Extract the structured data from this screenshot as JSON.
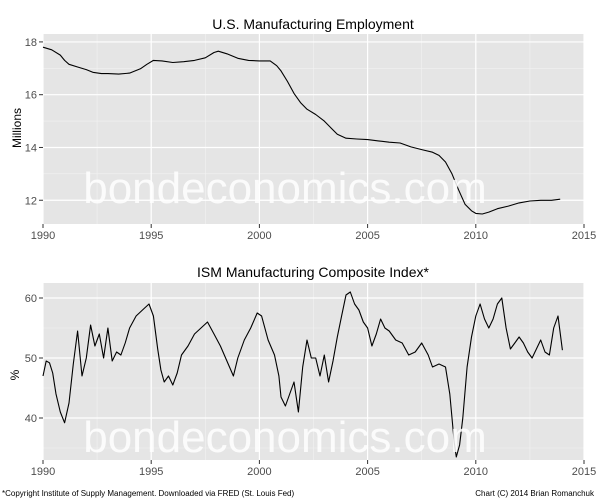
{
  "chart_data": [
    {
      "type": "line",
      "title": "U.S. Manufacturing Employment",
      "xlabel": "",
      "ylabel": "Millions",
      "xlim": [
        1990,
        2015
      ],
      "ylim": [
        11.1,
        18.3
      ],
      "x_ticks": [
        1990,
        1995,
        2000,
        2005,
        2010,
        2015
      ],
      "y_ticks": [
        12,
        14,
        16,
        18
      ],
      "grid": true,
      "series": [
        {
          "points": [
            [
              1990.0,
              17.8
            ],
            [
              1990.4,
              17.7
            ],
            [
              1990.8,
              17.5
            ],
            [
              1991.0,
              17.3
            ],
            [
              1991.2,
              17.15
            ],
            [
              1991.6,
              17.05
            ],
            [
              1992.0,
              16.95
            ],
            [
              1992.3,
              16.85
            ],
            [
              1992.7,
              16.8
            ],
            [
              1993.0,
              16.8
            ],
            [
              1993.5,
              16.78
            ],
            [
              1994.0,
              16.82
            ],
            [
              1994.5,
              16.98
            ],
            [
              1994.8,
              17.15
            ],
            [
              1995.1,
              17.3
            ],
            [
              1995.5,
              17.28
            ],
            [
              1996.0,
              17.22
            ],
            [
              1996.5,
              17.25
            ],
            [
              1997.0,
              17.3
            ],
            [
              1997.5,
              17.4
            ],
            [
              1997.9,
              17.6
            ],
            [
              1998.1,
              17.65
            ],
            [
              1998.5,
              17.55
            ],
            [
              1999.0,
              17.38
            ],
            [
              1999.5,
              17.3
            ],
            [
              2000.0,
              17.28
            ],
            [
              2000.5,
              17.28
            ],
            [
              2000.8,
              17.1
            ],
            [
              2001.0,
              16.9
            ],
            [
              2001.3,
              16.5
            ],
            [
              2001.6,
              16.05
            ],
            [
              2001.9,
              15.7
            ],
            [
              2002.2,
              15.45
            ],
            [
              2002.6,
              15.25
            ],
            [
              2003.0,
              15.0
            ],
            [
              2003.3,
              14.75
            ],
            [
              2003.6,
              14.5
            ],
            [
              2004.0,
              14.35
            ],
            [
              2004.5,
              14.32
            ],
            [
              2005.0,
              14.3
            ],
            [
              2005.5,
              14.25
            ],
            [
              2006.0,
              14.2
            ],
            [
              2006.5,
              14.17
            ],
            [
              2007.0,
              14.02
            ],
            [
              2007.5,
              13.92
            ],
            [
              2008.0,
              13.82
            ],
            [
              2008.3,
              13.7
            ],
            [
              2008.6,
              13.45
            ],
            [
              2008.9,
              13.0
            ],
            [
              2009.2,
              12.4
            ],
            [
              2009.5,
              11.85
            ],
            [
              2009.8,
              11.6
            ],
            [
              2010.0,
              11.5
            ],
            [
              2010.3,
              11.48
            ],
            [
              2010.6,
              11.55
            ],
            [
              2011.0,
              11.68
            ],
            [
              2011.5,
              11.78
            ],
            [
              2012.0,
              11.9
            ],
            [
              2012.5,
              11.97
            ],
            [
              2013.0,
              12.0
            ],
            [
              2013.5,
              12.0
            ],
            [
              2013.9,
              12.04
            ]
          ]
        }
      ]
    },
    {
      "type": "line",
      "title": "ISM Manufacturing Composite Index*",
      "xlabel": "",
      "ylabel": "%",
      "xlim": [
        1990,
        2015
      ],
      "ylim": [
        33,
        62.5
      ],
      "x_ticks": [
        1990,
        1995,
        2000,
        2005,
        2010,
        2015
      ],
      "y_ticks": [
        40,
        50,
        60
      ],
      "grid": true,
      "series": [
        {
          "points": [
            [
              1990.0,
              47.0
            ],
            [
              1990.15,
              49.5
            ],
            [
              1990.3,
              49.2
            ],
            [
              1990.45,
              47.5
            ],
            [
              1990.6,
              44.0
            ],
            [
              1990.8,
              41.0
            ],
            [
              1991.0,
              39.2
            ],
            [
              1991.2,
              42.5
            ],
            [
              1991.4,
              49.0
            ],
            [
              1991.6,
              54.5
            ],
            [
              1991.8,
              47.0
            ],
            [
              1992.0,
              50.0
            ],
            [
              1992.2,
              55.5
            ],
            [
              1992.4,
              52.0
            ],
            [
              1992.6,
              54.0
            ],
            [
              1992.8,
              50.0
            ],
            [
              1993.0,
              55.0
            ],
            [
              1993.2,
              49.5
            ],
            [
              1993.4,
              51.0
            ],
            [
              1993.6,
              50.5
            ],
            [
              1993.8,
              52.5
            ],
            [
              1994.0,
              55.0
            ],
            [
              1994.3,
              57.0
            ],
            [
              1994.6,
              58.0
            ],
            [
              1994.9,
              59.0
            ],
            [
              1995.1,
              57.0
            ],
            [
              1995.3,
              51.5
            ],
            [
              1995.45,
              48.0
            ],
            [
              1995.6,
              46.0
            ],
            [
              1995.8,
              47.0
            ],
            [
              1996.0,
              45.5
            ],
            [
              1996.2,
              47.5
            ],
            [
              1996.4,
              50.5
            ],
            [
              1996.7,
              52.0
            ],
            [
              1997.0,
              54.0
            ],
            [
              1997.3,
              55.0
            ],
            [
              1997.6,
              56.0
            ],
            [
              1997.9,
              54.0
            ],
            [
              1998.2,
              52.0
            ],
            [
              1998.5,
              49.5
            ],
            [
              1998.8,
              47.0
            ],
            [
              1999.0,
              50.0
            ],
            [
              1999.3,
              53.0
            ],
            [
              1999.6,
              55.0
            ],
            [
              1999.9,
              57.5
            ],
            [
              2000.1,
              57.0
            ],
            [
              2000.4,
              53.0
            ],
            [
              2000.7,
              50.5
            ],
            [
              2000.9,
              47.0
            ],
            [
              2001.0,
              43.5
            ],
            [
              2001.2,
              42.0
            ],
            [
              2001.4,
              44.0
            ],
            [
              2001.6,
              46.0
            ],
            [
              2001.8,
              41.0
            ],
            [
              2002.0,
              48.5
            ],
            [
              2002.2,
              53.0
            ],
            [
              2002.4,
              50.0
            ],
            [
              2002.6,
              50.0
            ],
            [
              2002.8,
              47.0
            ],
            [
              2003.0,
              50.5
            ],
            [
              2003.2,
              46.0
            ],
            [
              2003.4,
              49.5
            ],
            [
              2003.6,
              53.5
            ],
            [
              2003.8,
              57.0
            ],
            [
              2004.0,
              60.5
            ],
            [
              2004.2,
              61.0
            ],
            [
              2004.4,
              59.0
            ],
            [
              2004.6,
              58.0
            ],
            [
              2004.8,
              56.0
            ],
            [
              2005.0,
              55.0
            ],
            [
              2005.2,
              52.0
            ],
            [
              2005.4,
              54.0
            ],
            [
              2005.6,
              56.5
            ],
            [
              2005.8,
              55.0
            ],
            [
              2006.0,
              54.5
            ],
            [
              2006.3,
              53.0
            ],
            [
              2006.6,
              52.5
            ],
            [
              2006.9,
              50.5
            ],
            [
              2007.2,
              51.0
            ],
            [
              2007.5,
              52.5
            ],
            [
              2007.8,
              50.5
            ],
            [
              2008.0,
              48.5
            ],
            [
              2008.3,
              49.0
            ],
            [
              2008.6,
              48.5
            ],
            [
              2008.8,
              44.0
            ],
            [
              2009.0,
              36.0
            ],
            [
              2009.1,
              33.5
            ],
            [
              2009.25,
              35.5
            ],
            [
              2009.4,
              40.0
            ],
            [
              2009.6,
              48.5
            ],
            [
              2009.8,
              53.5
            ],
            [
              2010.0,
              57.0
            ],
            [
              2010.2,
              59.0
            ],
            [
              2010.4,
              56.5
            ],
            [
              2010.6,
              55.0
            ],
            [
              2010.8,
              56.5
            ],
            [
              2011.0,
              59.0
            ],
            [
              2011.2,
              60.0
            ],
            [
              2011.4,
              55.0
            ],
            [
              2011.6,
              51.5
            ],
            [
              2011.8,
              52.5
            ],
            [
              2012.0,
              53.5
            ],
            [
              2012.2,
              52.5
            ],
            [
              2012.4,
              51.0
            ],
            [
              2012.6,
              50.0
            ],
            [
              2012.8,
              51.5
            ],
            [
              2013.0,
              53.0
            ],
            [
              2013.2,
              51.0
            ],
            [
              2013.4,
              50.5
            ],
            [
              2013.6,
              55.0
            ],
            [
              2013.8,
              57.0
            ],
            [
              2014.0,
              51.3
            ]
          ]
        }
      ]
    }
  ],
  "watermark": "bondeconomics.com",
  "footnotes": {
    "left": "*Copyright Institute of Supply Management. Downloaded via FRED (St. Louis Fed)",
    "right": "Chart (C) 2014 Brian Romanchuk"
  },
  "colors": {
    "panel_background": "#e5e5e5",
    "grid_major": "#ffffff",
    "grid_minor": "#f2f2f2",
    "line": "#000000"
  }
}
